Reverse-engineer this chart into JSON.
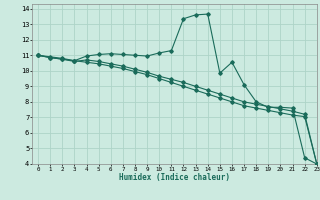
{
  "xlabel": "Humidex (Indice chaleur)",
  "bg_color": "#cceae0",
  "line_color": "#1a6b5a",
  "grid_color": "#aed4c8",
  "xlim": [
    -0.5,
    23
  ],
  "ylim": [
    4,
    14.3
  ],
  "xticks": [
    0,
    1,
    2,
    3,
    4,
    5,
    6,
    7,
    8,
    9,
    10,
    11,
    12,
    13,
    14,
    15,
    16,
    17,
    18,
    19,
    20,
    21,
    22,
    23
  ],
  "yticks": [
    4,
    5,
    6,
    7,
    8,
    9,
    10,
    11,
    12,
    13,
    14
  ],
  "series": [
    {
      "x": [
        0,
        1,
        2,
        3,
        4,
        5,
        6,
        7,
        8,
        9,
        10,
        11,
        12,
        13,
        14,
        15,
        16,
        17,
        18,
        19,
        20,
        21,
        22,
        23
      ],
      "y": [
        11.0,
        10.85,
        10.75,
        10.65,
        10.95,
        11.05,
        11.1,
        11.05,
        11.0,
        10.95,
        11.15,
        11.3,
        13.35,
        13.6,
        13.65,
        9.85,
        10.55,
        9.1,
        8.0,
        7.65,
        7.65,
        7.6,
        4.4,
        4.0
      ]
    },
    {
      "x": [
        0,
        1,
        2,
        3,
        4,
        5,
        6,
        7,
        8,
        9,
        10,
        11,
        12,
        13,
        14,
        15,
        16,
        17,
        18,
        19,
        20,
        21,
        22,
        23
      ],
      "y": [
        11.0,
        10.85,
        10.75,
        10.6,
        10.7,
        10.6,
        10.45,
        10.3,
        10.1,
        9.9,
        9.65,
        9.45,
        9.25,
        9.0,
        8.75,
        8.5,
        8.25,
        8.0,
        7.85,
        7.7,
        7.55,
        7.4,
        7.2,
        4.0
      ]
    },
    {
      "x": [
        0,
        1,
        2,
        3,
        4,
        5,
        6,
        7,
        8,
        9,
        10,
        11,
        12,
        13,
        14,
        15,
        16,
        17,
        18,
        19,
        20,
        21,
        22,
        23
      ],
      "y": [
        11.0,
        10.9,
        10.8,
        10.65,
        10.55,
        10.45,
        10.3,
        10.15,
        9.95,
        9.75,
        9.5,
        9.25,
        9.0,
        8.75,
        8.5,
        8.25,
        8.0,
        7.75,
        7.6,
        7.45,
        7.3,
        7.15,
        7.05,
        4.0
      ]
    }
  ]
}
